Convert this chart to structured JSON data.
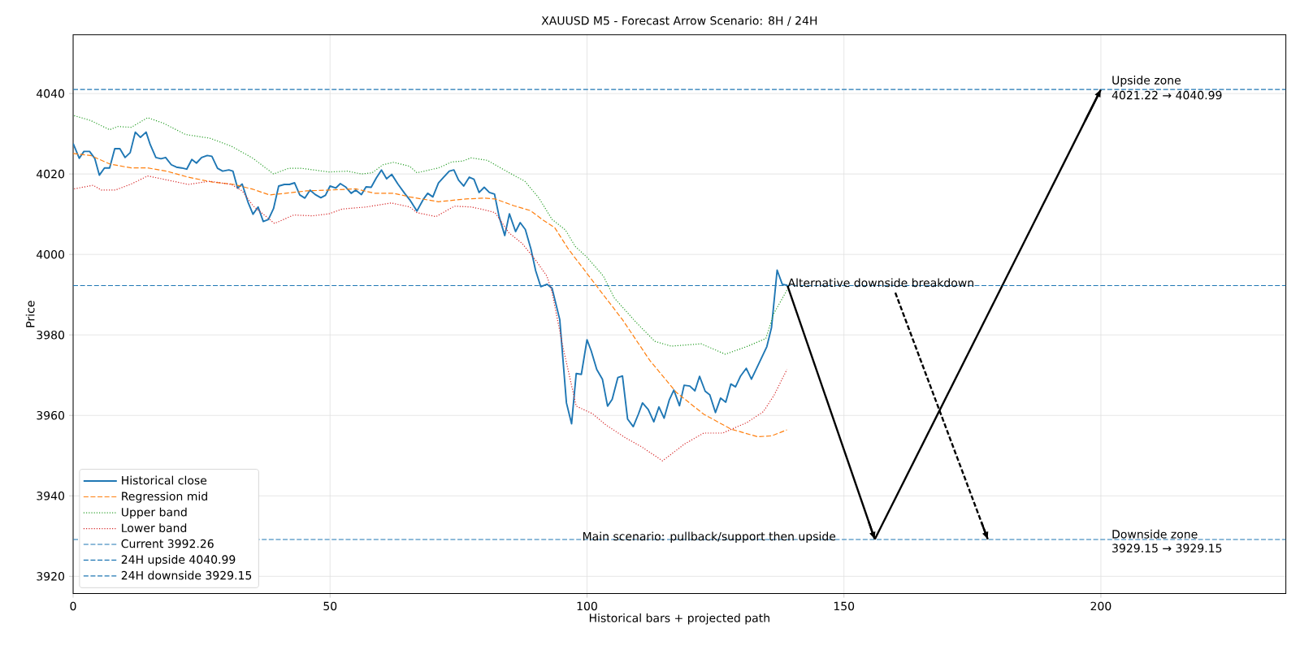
{
  "chart_data": {
    "type": "line",
    "title": "XAUUSD M5 - Forecast Arrow Scenario: 8H / 24H",
    "xlabel": "Historical bars + projected path",
    "ylabel": "Price",
    "xlim": [
      0,
      236
    ],
    "ylim": [
      3915.7,
      4054.6
    ],
    "xticks": [
      0,
      50,
      100,
      150,
      200
    ],
    "yticks": [
      3920,
      3940,
      3960,
      3980,
      4000,
      4020,
      4040
    ],
    "grid": true,
    "legend": "bottom left",
    "series": [
      {
        "name": "Historical close",
        "color": "#1f77b4",
        "line_style": "solid",
        "x": [
          0,
          1.2,
          2.1,
          3.2,
          4.2,
          5.1,
          6.1,
          7.1,
          8.1,
          9.1,
          10.1,
          11.1,
          12.1,
          13.1,
          14.2,
          15.0,
          16.1,
          17.1,
          18.0,
          19.1,
          20.1,
          21.1,
          22.1,
          23.1,
          24.0,
          25.0,
          26.1,
          27.0,
          28.1,
          29.1,
          30.3,
          31.1,
          32.0,
          32.9,
          34.0,
          35.0,
          36.0,
          37.0,
          38.0,
          39.0,
          40.0,
          41.1,
          42.1,
          43.1,
          44.1,
          45.1,
          46.1,
          47.1,
          48.2,
          49.1,
          50.0,
          51.1,
          52.0,
          53.0,
          54.1,
          55.0,
          56.1,
          57.0,
          58.0,
          59.0,
          60.0,
          61.0,
          62.0,
          63.2,
          64.5,
          65.5,
          66.9,
          68.2,
          69.0,
          70.0,
          71.1,
          72.1,
          73.2,
          74.1,
          75.0,
          76.0,
          77.1,
          78.0,
          79.0,
          80.0,
          81.0,
          82.0,
          82.9,
          84.0,
          84.9,
          86.1,
          87.0,
          88.0,
          89.1,
          90.0,
          91.0,
          92.2,
          93.2,
          94.7,
          96.0,
          97.0,
          97.9,
          98.9,
          100.0,
          100.8,
          101.9,
          103.0,
          104.0,
          104.9,
          106.0,
          106.9,
          107.9,
          109.0,
          110.0,
          110.8,
          111.9,
          113.0,
          114.0,
          115.0,
          116.0,
          116.9,
          118.0,
          118.9,
          120.0,
          121.0,
          121.9,
          123.0,
          123.9,
          125.0,
          126.0,
          127.0,
          128.0,
          128.9,
          129.9,
          131.0,
          132.0,
          133.0,
          135.0,
          135.9,
          137.0,
          138.0,
          139.0
        ],
        "values": [
          4027.6,
          4023.9,
          4025.6,
          4025.6,
          4023.9,
          4019.7,
          4021.5,
          4021.5,
          4026.3,
          4026.3,
          4024.1,
          4025.3,
          4030.4,
          4029.1,
          4030.4,
          4027.3,
          4024.1,
          4023.8,
          4024.1,
          4022.3,
          4021.7,
          4021.5,
          4021.2,
          4023.6,
          4022.7,
          4024.1,
          4024.6,
          4024.4,
          4021.4,
          4020.7,
          4021.0,
          4020.7,
          4016.5,
          4017.5,
          4013.1,
          4010.0,
          4011.8,
          4008.2,
          4008.7,
          4011.4,
          4017.0,
          4017.4,
          4017.4,
          4017.8,
          4014.8,
          4014.0,
          4016.0,
          4014.9,
          4014.1,
          4014.7,
          4017.0,
          4016.5,
          4017.6,
          4016.8,
          4015.2,
          4016.0,
          4014.9,
          4016.8,
          4016.7,
          4019.0,
          4021.0,
          4018.8,
          4019.9,
          4017.5,
          4015.2,
          4013.6,
          4010.8,
          4013.8,
          4015.2,
          4014.3,
          4017.8,
          4019.2,
          4020.7,
          4021.0,
          4018.5,
          4017.0,
          4019.2,
          4018.7,
          4015.4,
          4016.7,
          4015.4,
          4015.0,
          4009.4,
          4004.7,
          4010.1,
          4005.7,
          4007.9,
          4006.2,
          4001.3,
          3996.0,
          3992.0,
          3992.6,
          3991.6,
          3983.8,
          3963.1,
          3957.9,
          3970.4,
          3970.2,
          3978.8,
          3976.1,
          3971.4,
          3969.0,
          3962.3,
          3964.0,
          3969.4,
          3969.8,
          3959.1,
          3957.2,
          3960.3,
          3963.1,
          3961.5,
          3958.4,
          3962.1,
          3959.3,
          3963.8,
          3966.3,
          3962.4,
          3967.5,
          3967.3,
          3966.1,
          3969.7,
          3966.0,
          3965.1,
          3960.7,
          3964.3,
          3963.3,
          3967.8,
          3967.1,
          3969.8,
          3971.7,
          3969.0,
          3971.7,
          3977.1,
          3981.8,
          3996.1,
          3992.6,
          3992.3
        ]
      },
      {
        "name": "Regression mid",
        "color": "#ff7f0e",
        "line_style": "dashed",
        "x": [
          0,
          3.4,
          7.1,
          11.3,
          14.5,
          18.2,
          22.4,
          27.1,
          31.3,
          35.0,
          38.2,
          41.3,
          45.5,
          49.8,
          55.0,
          58.7,
          62.4,
          65.5,
          71.1,
          76.4,
          80.0,
          82.1,
          85.8,
          89.0,
          91.6,
          93.7,
          96.4,
          101.6,
          106.9,
          112.2,
          117.4,
          122.7,
          128.0,
          133.2,
          135.9,
          138.9
        ],
        "values": [
          4025.1,
          4024.6,
          4022.5,
          4021.5,
          4021.5,
          4020.7,
          4019.2,
          4018.0,
          4017.4,
          4016.2,
          4014.8,
          4015.2,
          4015.8,
          4016.0,
          4016.3,
          4015.2,
          4015.2,
          4014.3,
          4013.1,
          4013.8,
          4014.0,
          4013.8,
          4012.1,
          4010.9,
          4008.4,
          4006.7,
          4001.3,
          3992.6,
          3983.8,
          3973.7,
          3965.7,
          3960.3,
          3956.6,
          3954.7,
          3954.9,
          3956.4
        ]
      },
      {
        "name": "Upper band",
        "color": "#2ca02c",
        "line_style": "dotted",
        "x": [
          0.2,
          3.4,
          7.1,
          8.7,
          11.3,
          14.5,
          17.6,
          21.9,
          26.6,
          30.8,
          35.0,
          39.0,
          41.9,
          44.5,
          49.8,
          53.4,
          56.1,
          58.2,
          60.3,
          62.4,
          65.5,
          66.9,
          71.1,
          73.7,
          75.8,
          77.4,
          80.6,
          84.3,
          87.9,
          90.6,
          93.2,
          95.8,
          97.7,
          100.0,
          103.2,
          105.3,
          109.5,
          113.2,
          116.4,
          122.2,
          126.9,
          131.1,
          134.8,
          136.3,
          138.9
        ],
        "values": [
          4034.5,
          4033.3,
          4031.0,
          4031.8,
          4031.6,
          4034.0,
          4032.6,
          4029.8,
          4028.9,
          4026.9,
          4023.9,
          4020.0,
          4021.4,
          4021.4,
          4020.5,
          4020.7,
          4020.0,
          4020.3,
          4022.3,
          4022.9,
          4021.9,
          4020.3,
          4021.5,
          4023.0,
          4023.2,
          4024.0,
          4023.4,
          4020.7,
          4018.2,
          4014.1,
          4008.7,
          4006.1,
          4002.0,
          3999.3,
          3994.6,
          3989.2,
          3983.2,
          3978.4,
          3977.2,
          3977.8,
          3975.2,
          3977.1,
          3979.1,
          3985.2,
          3991.1
        ]
      },
      {
        "name": "Lower band",
        "color": "#d62728",
        "line_style": "dotted",
        "x": [
          0.2,
          3.9,
          5.5,
          8.2,
          11.3,
          14.5,
          17.6,
          22.4,
          26.6,
          30.8,
          32.9,
          35.0,
          39.2,
          42.9,
          46.6,
          49.8,
          52.4,
          57.1,
          61.9,
          65.5,
          66.9,
          70.6,
          74.2,
          77.4,
          80.0,
          82.1,
          84.8,
          87.4,
          90.0,
          92.2,
          93.2,
          95.3,
          97.9,
          101.1,
          103.7,
          107.4,
          110.6,
          114.7,
          119.0,
          122.7,
          126.4,
          131.1,
          134.3,
          136.4,
          138.9
        ],
        "values": [
          4016.3,
          4017.2,
          4016.0,
          4016.0,
          4017.5,
          4019.5,
          4018.7,
          4017.4,
          4018.2,
          4017.4,
          4015.8,
          4012.1,
          4007.7,
          4009.8,
          4009.6,
          4010.1,
          4011.3,
          4011.8,
          4012.8,
          4011.8,
          4010.4,
          4009.4,
          4012.0,
          4011.8,
          4011.1,
          4010.4,
          4005.4,
          4002.7,
          3998.6,
          3994.6,
          3990.6,
          3977.1,
          3962.3,
          3960.4,
          3957.6,
          3954.5,
          3952.2,
          3948.7,
          3952.9,
          3955.6,
          3955.6,
          3958.2,
          3960.9,
          3965.0,
          3971.4
        ]
      },
      {
        "color": "#000000",
        "line_style": "solid",
        "x": [
          139,
          156
        ],
        "values": [
          3992.3,
          3929.2
        ]
      },
      {
        "color": "#000000",
        "line_style": "solid",
        "x": [
          156,
          200
        ],
        "values": [
          3929.2,
          4041.0
        ]
      },
      {
        "color": "#000000",
        "line_style": "dashed",
        "x": [
          160,
          178
        ],
        "values": [
          3990.5,
          3929.2
        ]
      }
    ],
    "ref_lines": [
      {
        "axis": "y",
        "value": 3992.26,
        "label": "Current 3992.26",
        "color": "#1f77b4",
        "line_style": "dashed"
      },
      {
        "axis": "y",
        "value": 4040.99,
        "label": "24H upside 4040.99",
        "color": "#1f77b4",
        "line_style": "dashed"
      },
      {
        "axis": "y",
        "value": 3929.15,
        "label": "24H downside 3929.15",
        "color": "#1f77b4",
        "line_style": "dashed"
      }
    ],
    "annotations": [
      {
        "text": "Alternative downside breakdown",
        "x": 139,
        "y": 3993.0
      },
      {
        "text": "Main scenario: pullback/support then upside",
        "x": 99,
        "y": 3929.7
      },
      "Upside zone",
      "4021.22 → 4040.99",
      "Downside zone",
      "3929.15 → 3929.15"
    ]
  }
}
